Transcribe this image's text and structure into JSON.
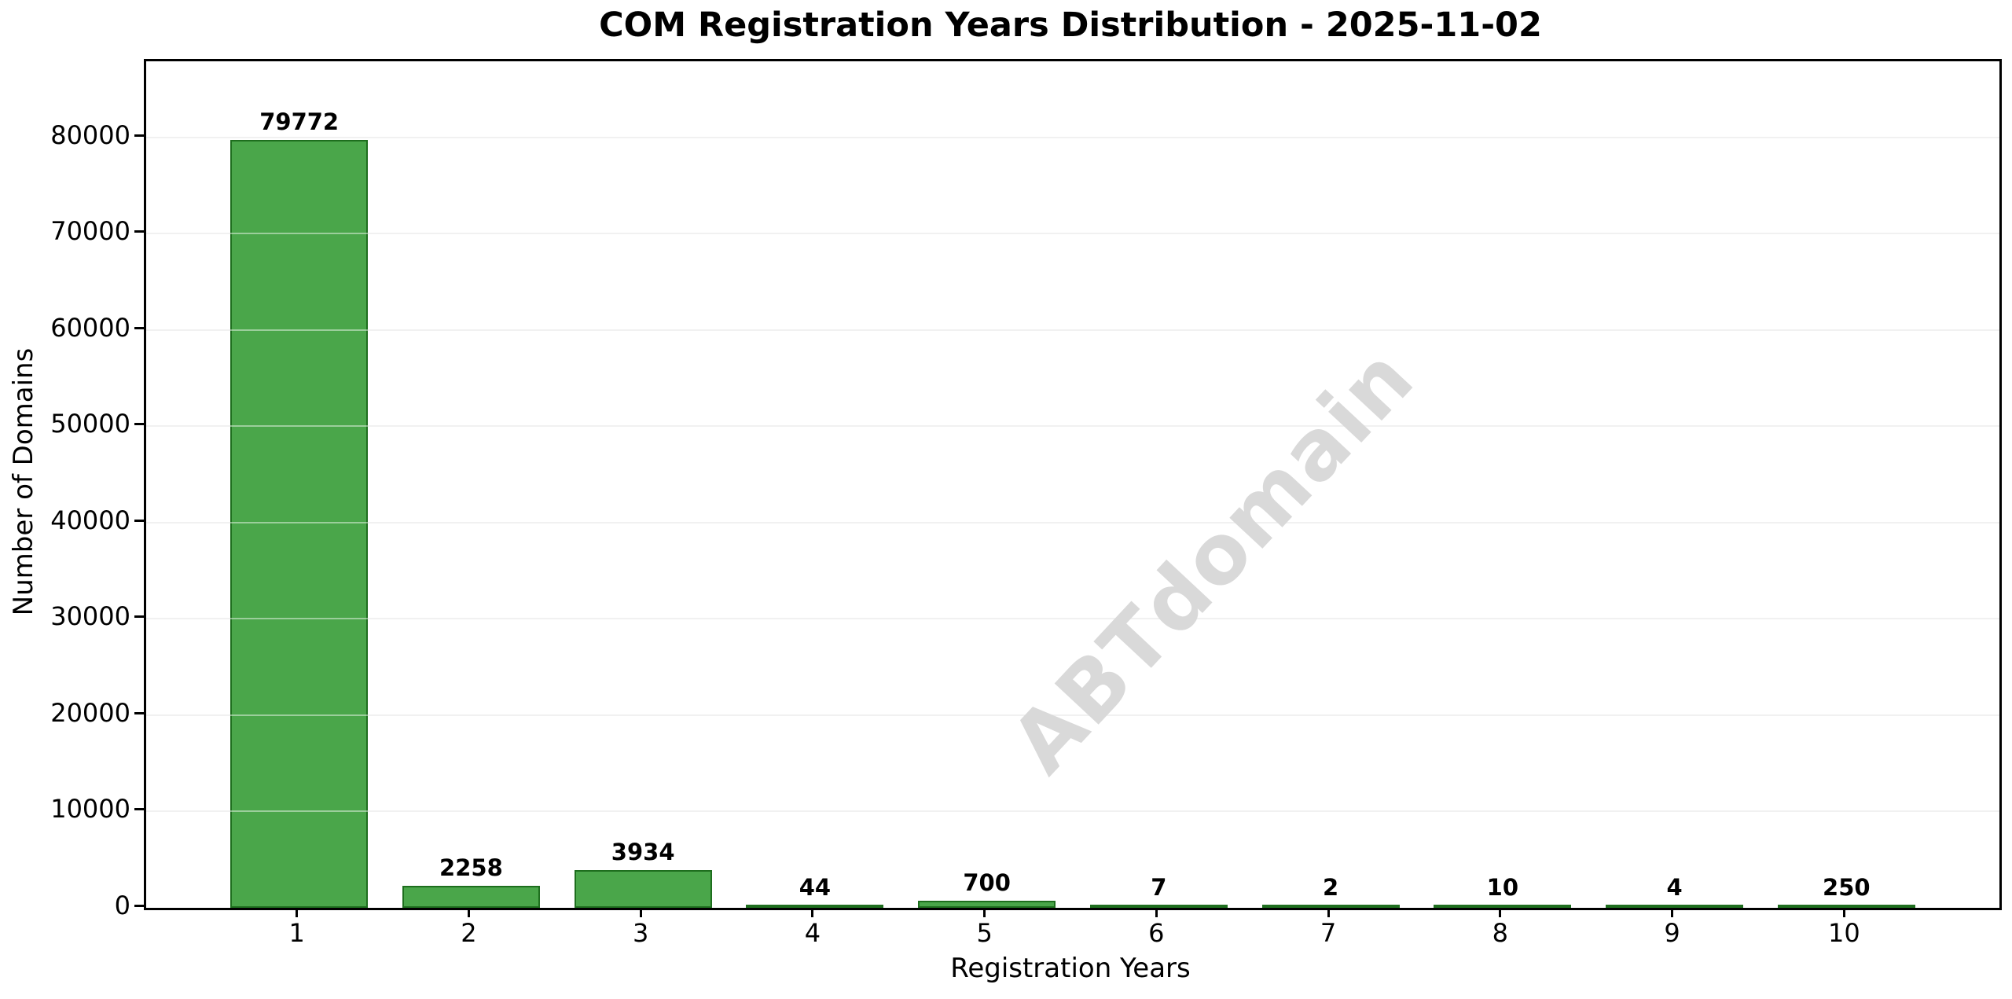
{
  "chart_data": {
    "type": "bar",
    "title": "COM Registration Years Distribution - 2025-11-02",
    "xlabel": "Registration Years",
    "ylabel": "Number of Domains",
    "categories": [
      "1",
      "2",
      "3",
      "4",
      "5",
      "6",
      "7",
      "8",
      "9",
      "10"
    ],
    "values": [
      79772,
      2258,
      3934,
      44,
      700,
      7,
      2,
      10,
      4,
      250
    ],
    "value_labels": [
      "79772",
      "2258",
      "3934",
      "44",
      "700",
      "7",
      "2",
      "10",
      "4",
      "250"
    ],
    "yticks": [
      0,
      10000,
      20000,
      30000,
      40000,
      50000,
      60000,
      70000,
      80000
    ],
    "ytick_labels": [
      "0",
      "10000",
      "20000",
      "30000",
      "40000",
      "50000",
      "60000",
      "70000",
      "80000"
    ],
    "ylim": [
      0,
      87900
    ],
    "grid": "horizontal",
    "legend": "none",
    "watermark": "ABTdomain",
    "colors": {
      "bar_fill": "#4aa64a",
      "bar_edge": "#1e6e1e",
      "gridline": "#e5e5e5",
      "axis": "#000000",
      "text": "#000000",
      "watermark": "#d9d9d9",
      "background": "#ffffff"
    }
  }
}
